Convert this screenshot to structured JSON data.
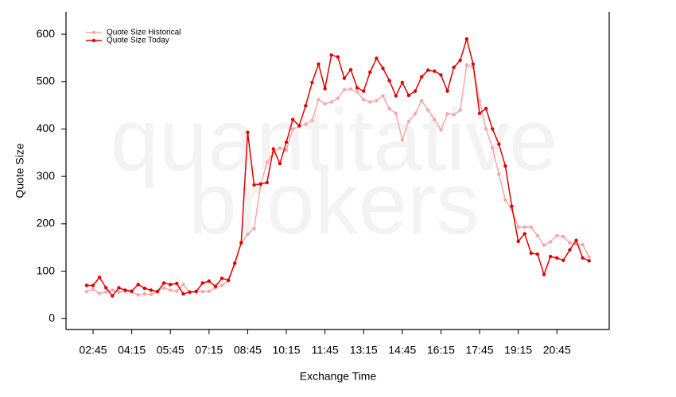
{
  "chart_data": {
    "type": "line",
    "watermark": [
      "quantitative",
      "brokers"
    ],
    "xlabel": "Exchange Time",
    "ylabel": "Quote Size",
    "x": [
      2.5,
      2.75,
      3,
      3.25,
      3.5,
      3.75,
      4,
      4.25,
      4.5,
      4.75,
      5,
      5.25,
      5.5,
      5.75,
      6,
      6.25,
      6.5,
      6.75,
      7,
      7.25,
      7.5,
      7.75,
      8,
      8.25,
      8.5,
      8.75,
      9,
      9.25,
      9.5,
      9.75,
      10,
      10.25,
      10.5,
      10.75,
      11,
      11.25,
      11.5,
      11.75,
      12,
      12.25,
      12.5,
      12.75,
      13,
      13.25,
      13.5,
      13.75,
      14,
      14.25,
      14.5,
      14.75,
      15,
      15.25,
      15.5,
      15.75,
      16,
      16.25,
      16.5,
      16.75,
      17,
      17.25,
      17.5,
      17.75,
      18,
      18.25,
      18.5,
      18.75,
      19,
      19.25,
      19.5,
      19.75,
      20,
      20.25,
      20.5,
      20.75,
      21,
      21.25,
      21.5,
      21.75,
      22
    ],
    "xlim": [
      1.7,
      22.78
    ],
    "xticks": [
      {
        "value": 2.75,
        "label": "02:45"
      },
      {
        "value": 4.25,
        "label": "04:15"
      },
      {
        "value": 5.75,
        "label": "05:45"
      },
      {
        "value": 7.25,
        "label": "07:15"
      },
      {
        "value": 8.75,
        "label": "08:45"
      },
      {
        "value": 10.25,
        "label": "10:15"
      },
      {
        "value": 11.75,
        "label": "11:45"
      },
      {
        "value": 13.25,
        "label": "13:15"
      },
      {
        "value": 14.75,
        "label": "14:45"
      },
      {
        "value": 16.25,
        "label": "16:15"
      },
      {
        "value": 17.75,
        "label": "17:45"
      },
      {
        "value": 19.25,
        "label": "19:15"
      },
      {
        "value": 20.75,
        "label": "20:45"
      }
    ],
    "ylim": [
      -23,
      647
    ],
    "yticks": [
      0,
      100,
      200,
      300,
      400,
      500,
      600
    ],
    "legend": "top-left",
    "series": [
      {
        "name": "Quote Size Historical",
        "color": "#f7a8a8",
        "values": [
          57,
          62,
          53,
          56,
          60,
          56,
          58,
          56,
          50,
          52,
          51,
          58,
          65,
          60,
          58,
          72,
          55,
          58,
          57,
          58,
          65,
          70,
          80,
          115,
          160,
          178,
          190,
          280,
          330,
          350,
          360,
          355,
          400,
          405,
          410,
          418,
          462,
          453,
          457,
          465,
          483,
          484,
          478,
          462,
          457,
          460,
          470,
          443,
          433,
          377,
          416,
          432,
          460,
          440,
          420,
          398,
          432,
          430,
          440,
          535,
          530,
          460,
          400,
          360,
          305,
          250,
          230,
          193,
          193,
          193,
          175,
          155,
          162,
          175,
          173,
          160,
          157,
          156,
          130
        ]
      },
      {
        "name": "Quote Size Today",
        "color": "#e00000",
        "values": [
          70,
          70,
          87,
          65,
          48,
          65,
          60,
          58,
          72,
          64,
          60,
          57,
          75,
          72,
          74,
          52,
          56,
          57,
          75,
          79,
          68,
          85,
          81,
          117,
          160,
          393,
          282,
          284,
          287,
          358,
          327,
          372,
          420,
          407,
          449,
          498,
          537,
          485,
          556,
          552,
          507,
          525,
          487,
          480,
          520,
          549,
          528,
          502,
          470,
          498,
          471,
          480,
          510,
          524,
          522,
          514,
          480,
          530,
          545,
          590,
          537,
          433,
          443,
          400,
          368,
          322,
          237,
          163,
          179,
          138,
          136,
          93,
          131,
          128,
          123,
          145,
          165,
          128,
          122
        ]
      }
    ]
  }
}
